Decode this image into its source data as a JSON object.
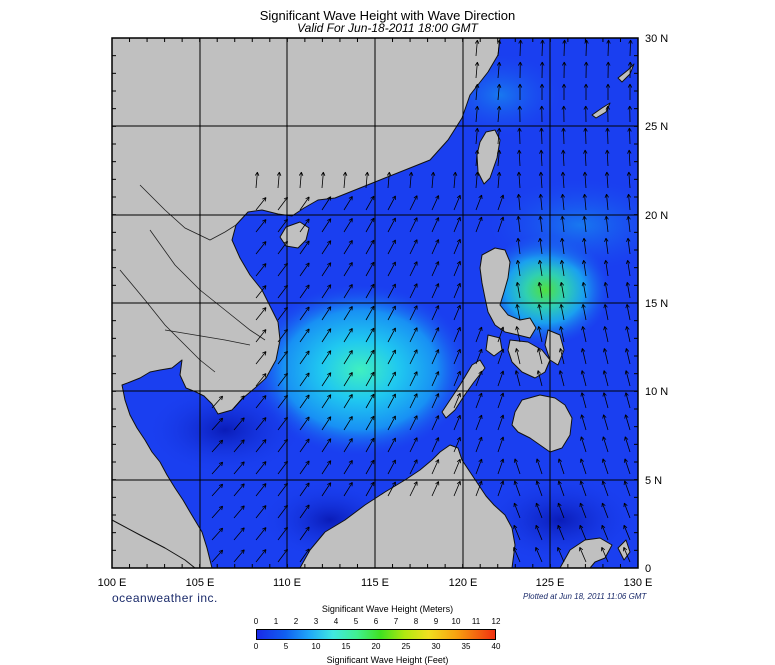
{
  "header": {
    "title": "Significant Wave Height with Wave Direction",
    "subtitle": "Valid For Jun-18-2011 18:00 GMT"
  },
  "map": {
    "lon_range": [
      100,
      130
    ],
    "lat_range": [
      0,
      30
    ],
    "land_color": "#c0c0c0",
    "ocean_base_color": "#1a3ff0",
    "x_labels": [
      "100 E",
      "105 E",
      "110 E",
      "115 E",
      "120 E",
      "125 E",
      "130 E"
    ],
    "y_labels": [
      "30 N",
      "25 N",
      "20 N",
      "15 N",
      "10 N",
      "5 N",
      "0"
    ]
  },
  "footer": {
    "brand": "oceanweather inc.",
    "plotted": "Plotted at Jun 18, 2011 11:06 GMT"
  },
  "colorbar": {
    "title_meters": "Significant Wave Height (Meters)",
    "title_feet": "Significant Wave Height (Feet)",
    "meter_ticks": [
      "0",
      "1",
      "2",
      "3",
      "4",
      "5",
      "6",
      "7",
      "8",
      "9",
      "10",
      "11",
      "12"
    ],
    "feet_ticks": [
      "0",
      "5",
      "10",
      "15",
      "20",
      "25",
      "30",
      "35",
      "40"
    ]
  }
}
